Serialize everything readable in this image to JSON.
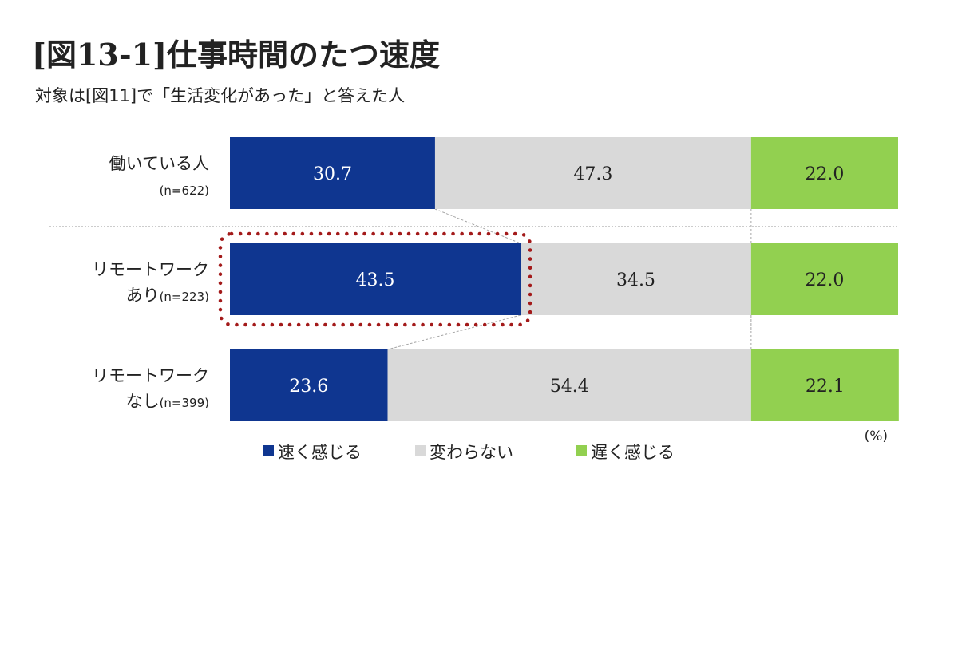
{
  "chart_data": {
    "type": "bar",
    "stacked": true,
    "orientation": "horizontal",
    "title": "[図13-1]仕事時間のたつ速度",
    "subtitle": "対象は[図11]で「生活変化があった」と答えた人",
    "unit_label": "(%)",
    "categories": [
      {
        "line1": "働いている人",
        "line2": "",
        "n": "(n=622)"
      },
      {
        "line1": "リモートワーク",
        "line2": "あり",
        "n": "(n=223)"
      },
      {
        "line1": "リモートワーク",
        "line2": "なし",
        "n": "(n=399)"
      }
    ],
    "series": [
      {
        "name": "速く感じる",
        "color": "#0f3690",
        "label_color": "#ffffff",
        "values": [
          30.7,
          43.5,
          23.6
        ],
        "labels": [
          "30.7",
          "43.5",
          "23.6"
        ]
      },
      {
        "name": "変わらない",
        "color": "#d9d9d9",
        "label_color": "#222222",
        "values": [
          47.3,
          34.5,
          54.4
        ],
        "labels": [
          "47.3",
          "34.5",
          "54.4"
        ]
      },
      {
        "name": "遅く感じる",
        "color": "#92d050",
        "label_color": "#222222",
        "values": [
          22.0,
          22.0,
          22.1
        ],
        "labels": [
          "22.0",
          "22.0",
          "22.1"
        ]
      }
    ],
    "xlim": [
      0,
      100
    ],
    "highlight": {
      "category_index": 1,
      "series_index": 0,
      "color": "#a31a1a"
    },
    "legend_position": "bottom"
  }
}
